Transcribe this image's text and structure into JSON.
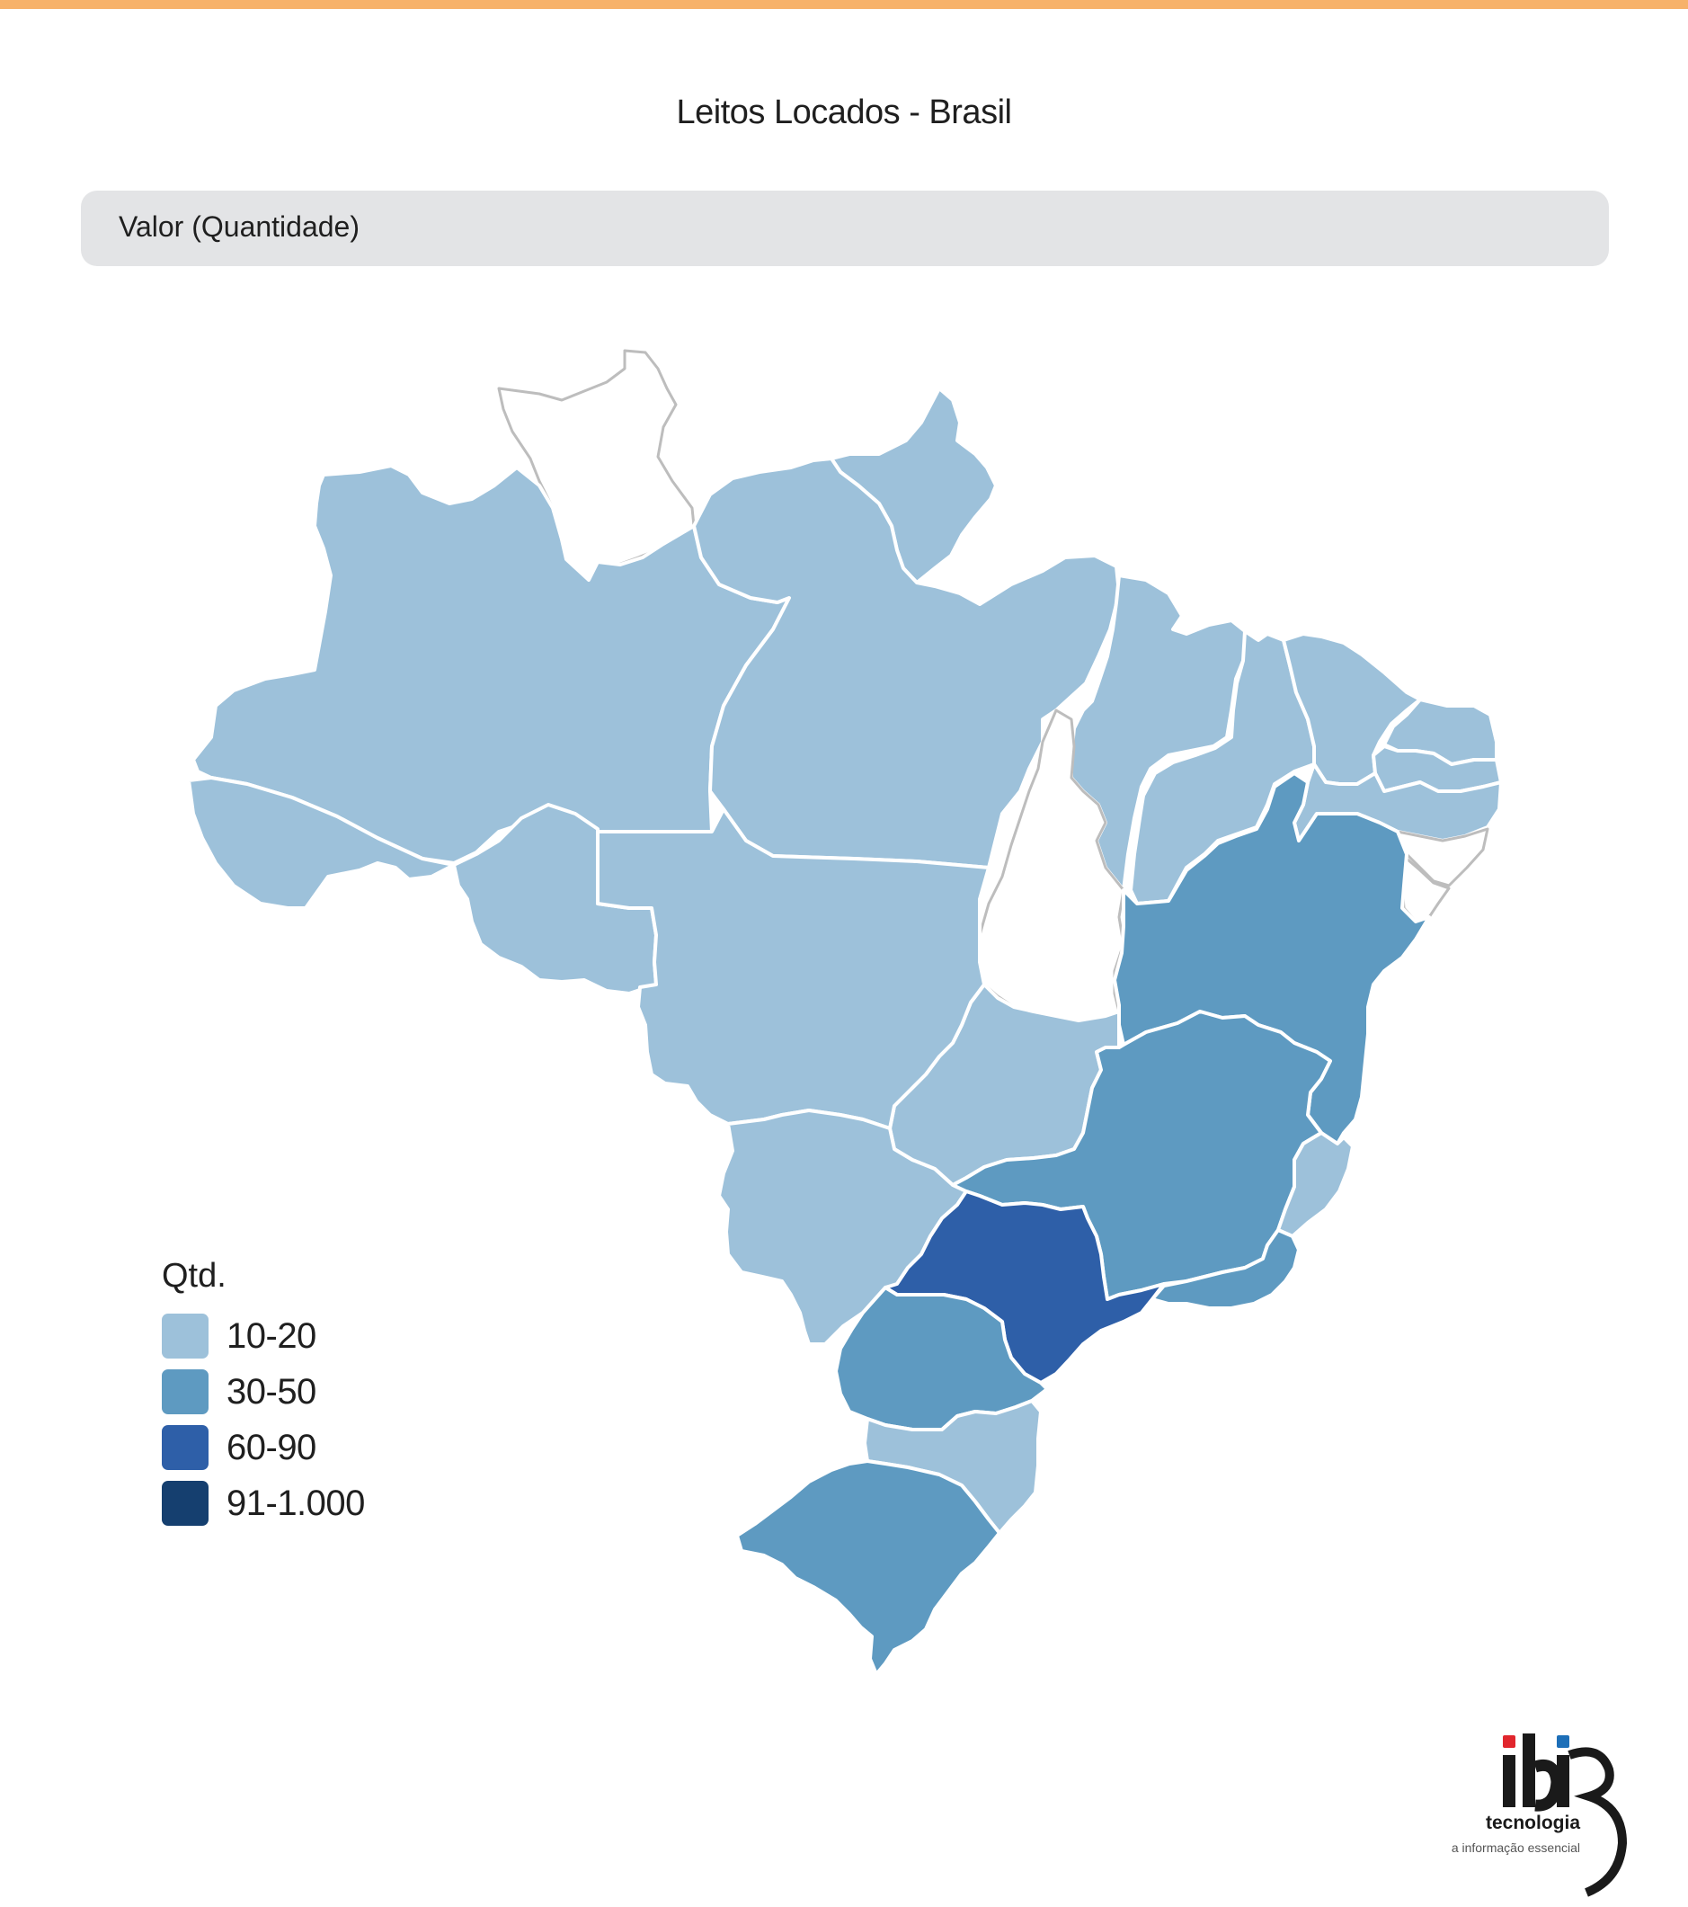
{
  "header": {
    "title": "Leitos Locados - Brasil",
    "accent_color": "#f7b26a"
  },
  "metric": {
    "label": "Valor (Quantidade)"
  },
  "legend": {
    "title": "Qtd.",
    "items": [
      {
        "label": "10-20",
        "color": "#9dc1da"
      },
      {
        "label": "30-50",
        "color": "#5e9ac1"
      },
      {
        "label": "60-90",
        "color": "#2e5fa8"
      },
      {
        "label": "91-1.000",
        "color": "#153f6f"
      }
    ]
  },
  "map_data": {
    "type": "choropleth",
    "region": "Brasil",
    "no_data_color": "#ffffff",
    "states": [
      {
        "id": "AM",
        "bin": "10-20"
      },
      {
        "id": "PA",
        "bin": "10-20"
      },
      {
        "id": "AP",
        "bin": "10-20"
      },
      {
        "id": "RR",
        "bin": null
      },
      {
        "id": "AC",
        "bin": "10-20"
      },
      {
        "id": "RO",
        "bin": "10-20"
      },
      {
        "id": "MT",
        "bin": "10-20"
      },
      {
        "id": "MS",
        "bin": "10-20"
      },
      {
        "id": "GO",
        "bin": "10-20"
      },
      {
        "id": "DF",
        "bin": null
      },
      {
        "id": "TO",
        "bin": null
      },
      {
        "id": "MA",
        "bin": "10-20"
      },
      {
        "id": "PI",
        "bin": "10-20"
      },
      {
        "id": "CE",
        "bin": "10-20"
      },
      {
        "id": "RN",
        "bin": "10-20"
      },
      {
        "id": "PB",
        "bin": "10-20"
      },
      {
        "id": "PE",
        "bin": "10-20"
      },
      {
        "id": "AL",
        "bin": null
      },
      {
        "id": "SE",
        "bin": null
      },
      {
        "id": "BA",
        "bin": "30-50"
      },
      {
        "id": "MG",
        "bin": "30-50"
      },
      {
        "id": "ES",
        "bin": "10-20"
      },
      {
        "id": "RJ",
        "bin": "30-50"
      },
      {
        "id": "SP",
        "bin": "60-90"
      },
      {
        "id": "PR",
        "bin": "30-50"
      },
      {
        "id": "SC",
        "bin": "10-20"
      },
      {
        "id": "RS",
        "bin": "30-50"
      }
    ]
  },
  "logo": {
    "brand": "ibi",
    "line1": "tecnologia",
    "line2": "a informação essencial",
    "dot_red": "#e1262d",
    "dot_blue": "#1d6fb8"
  }
}
